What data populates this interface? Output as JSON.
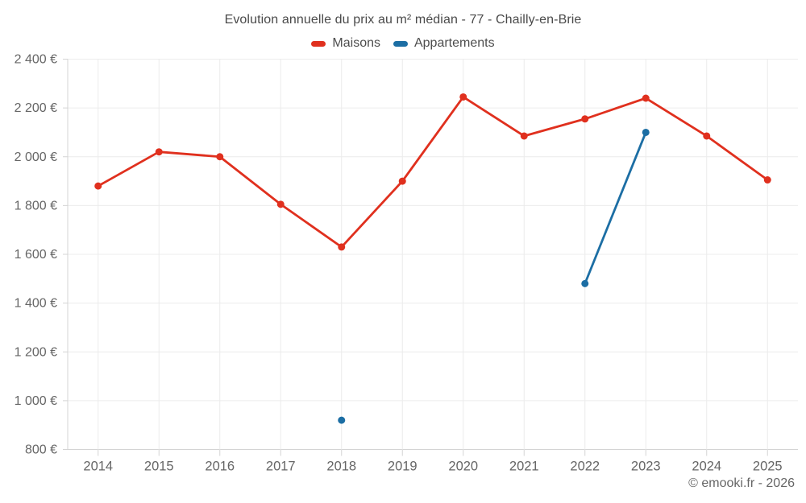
{
  "chart": {
    "title": "Evolution annuelle du prix au m² médian - 77 - Chailly-en-Brie",
    "copyright": "© emooki.fr - 2026"
  },
  "chart_data": {
    "type": "line",
    "title": "Evolution annuelle du prix au m² médian - 77 - Chailly-en-Brie",
    "categories": [
      "2014",
      "2015",
      "2016",
      "2017",
      "2018",
      "2019",
      "2020",
      "2021",
      "2022",
      "2023",
      "2024",
      "2025"
    ],
    "series": [
      {
        "name": "Maisons",
        "color": "#e0301e",
        "values": [
          1880,
          2020,
          2000,
          1805,
          1630,
          1900,
          2245,
          2085,
          2155,
          2240,
          2085,
          1905
        ]
      },
      {
        "name": "Appartements",
        "color": "#1c6ea4",
        "values": [
          null,
          null,
          null,
          null,
          920,
          null,
          null,
          null,
          1480,
          2100,
          null,
          null
        ]
      }
    ],
    "xlabel": "",
    "ylabel": "",
    "ylim": [
      800,
      2400
    ],
    "ytick_step": 200,
    "y_tick_labels": [
      "800 €",
      "1 000 €",
      "1 200 €",
      "1 400 €",
      "1 600 €",
      "1 800 €",
      "2 000 €",
      "2 200 €",
      "2 400 €"
    ],
    "grid": true,
    "legend_position": "top",
    "annotations": [
      "© emooki.fr - 2026"
    ]
  }
}
